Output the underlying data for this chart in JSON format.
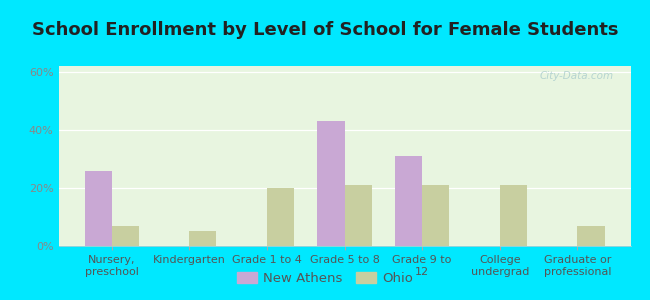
{
  "title": "School Enrollment by Level of School for Female Students",
  "categories": [
    "Nursery,\npreschool",
    "Kindergarten",
    "Grade 1 to 4",
    "Grade 5 to 8",
    "Grade 9 to\n12",
    "College\nundergrad",
    "Graduate or\nprofessional"
  ],
  "new_athens": [
    26,
    0,
    0,
    43,
    31,
    0,
    0
  ],
  "ohio": [
    7,
    5,
    20,
    21,
    21,
    21,
    7
  ],
  "bar_color_athens": "#c9a8d4",
  "bar_color_ohio": "#c8cfa0",
  "background_outer": "#00e8ff",
  "background_inner_top": "#e8f5e0",
  "background_inner_bottom": "#f0faf0",
  "yticks": [
    0,
    20,
    40,
    60
  ],
  "ylim": [
    0,
    62
  ],
  "legend_labels": [
    "New Athens",
    "Ohio"
  ],
  "title_fontsize": 13,
  "tick_fontsize": 8,
  "legend_fontsize": 9.5,
  "bar_width": 0.35,
  "tick_label_color": "#555555",
  "ytick_label_color": "#888888"
}
